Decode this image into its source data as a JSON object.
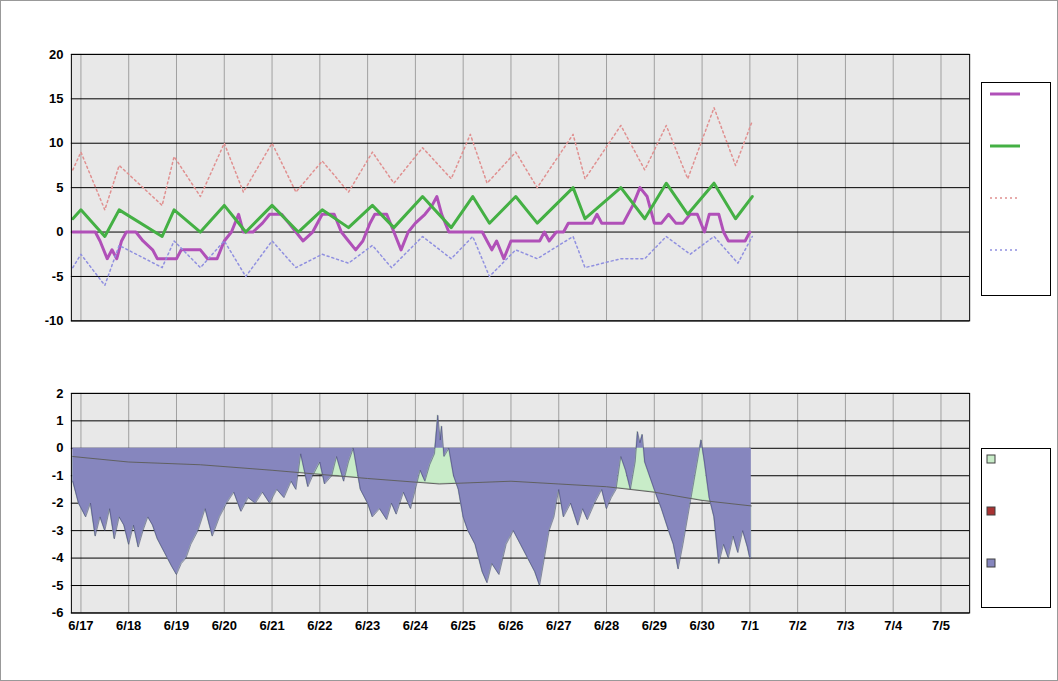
{
  "chart_data": [
    {
      "type": "line",
      "xlim": [
        -0.2,
        18.6
      ],
      "xticks": [
        {
          "value": 0,
          "label": "6/17"
        },
        {
          "value": 1,
          "label": "6/18"
        },
        {
          "value": 2,
          "label": "6/19"
        },
        {
          "value": 3,
          "label": "6/20"
        },
        {
          "value": 4,
          "label": "6/21"
        },
        {
          "value": 5,
          "label": "6/22"
        },
        {
          "value": 6,
          "label": "6/23"
        },
        {
          "value": 7,
          "label": "6/24"
        },
        {
          "value": 8,
          "label": "6/25"
        },
        {
          "value": 9,
          "label": "6/26"
        },
        {
          "value": 10,
          "label": "6/27"
        },
        {
          "value": 11,
          "label": "6/28"
        },
        {
          "value": 12,
          "label": "6/29"
        },
        {
          "value": 13,
          "label": "6/30"
        },
        {
          "value": 14,
          "label": "7/1"
        },
        {
          "value": 15,
          "label": "7/2"
        },
        {
          "value": 16,
          "label": "7/3"
        },
        {
          "value": 17,
          "label": "7/4"
        },
        {
          "value": 18,
          "label": "7/5"
        }
      ],
      "ylim": [
        -10,
        20
      ],
      "yticks": [
        -10,
        -5,
        0,
        5,
        10,
        15,
        20
      ],
      "grid": true,
      "legend": "right",
      "tick_labels": "y",
      "series": [
        {
          "color": "#b050b8",
          "line_style": "solid",
          "x": [
            -0.17,
            0.3,
            0.4,
            0.55,
            0.65,
            0.75,
            0.85,
            0.95,
            1.15,
            1.3,
            1.5,
            1.6,
            2.0,
            2.1,
            2.5,
            2.65,
            2.85,
            3.0,
            3.15,
            3.3,
            3.4,
            3.6,
            3.8,
            3.95,
            4.2,
            4.35,
            4.5,
            4.65,
            4.85,
            5.05,
            5.3,
            5.45,
            5.6,
            5.75,
            5.9,
            6.05,
            6.15,
            6.4,
            6.55,
            6.7,
            6.85,
            7.0,
            7.2,
            7.35,
            7.45,
            7.55,
            7.7,
            8.4,
            8.5,
            8.6,
            8.7,
            8.85,
            9.0,
            9.6,
            9.7,
            9.8,
            9.95,
            10.1,
            10.2,
            10.7,
            10.8,
            10.9,
            11.35,
            11.45,
            11.55,
            11.7,
            11.85,
            12.0,
            12.15,
            12.3,
            12.45,
            12.6,
            12.75,
            12.9,
            13.05,
            13.15,
            13.35,
            13.45,
            13.55,
            13.9,
            14.0
          ],
          "values": [
            0,
            0,
            -1,
            -3,
            -2,
            -3,
            -1,
            0,
            0,
            -1,
            -2,
            -3,
            -3,
            -2,
            -2,
            -3,
            -3,
            -1,
            0,
            2,
            0,
            0,
            1,
            2,
            2,
            1,
            0,
            -1,
            0,
            2,
            2,
            0,
            -1,
            -2,
            -1,
            1,
            2,
            2,
            0,
            -2,
            0,
            1,
            2,
            3,
            4,
            2,
            0,
            0,
            -1,
            -2,
            -1,
            -3,
            -1,
            -1,
            0,
            -1,
            0,
            0,
            1,
            1,
            2,
            1,
            1,
            2,
            3,
            5,
            4,
            1,
            1,
            2,
            1,
            1,
            2,
            2,
            0,
            2,
            2,
            0,
            -1,
            -1,
            0
          ]
        },
        {
          "color": "#44b044",
          "line_style": "solid",
          "x": [
            -0.17,
            0.0,
            0.5,
            0.8,
            1.7,
            1.95,
            2.5,
            3.0,
            3.45,
            4.0,
            4.55,
            5.05,
            5.6,
            6.1,
            6.55,
            7.15,
            7.75,
            8.2,
            8.55,
            9.1,
            9.55,
            10.3,
            10.55,
            11.3,
            11.8,
            12.25,
            12.7,
            13.25,
            13.7,
            14.05
          ],
          "values": [
            1.5,
            2.5,
            -0.5,
            2.5,
            -0.5,
            2.5,
            0,
            3,
            0,
            3,
            0,
            2.5,
            0.5,
            3,
            0.5,
            4,
            0.5,
            4,
            1,
            4,
            1,
            5,
            1.5,
            5,
            1.5,
            5.5,
            2,
            5.5,
            1.5,
            4
          ]
        },
        {
          "color": "#e09090",
          "line_style": "dotted",
          "x": [
            -0.17,
            0.0,
            0.5,
            0.8,
            1.7,
            1.95,
            2.5,
            3.0,
            3.4,
            4.0,
            4.5,
            5.05,
            5.6,
            6.1,
            6.55,
            7.15,
            7.75,
            8.15,
            8.5,
            9.1,
            9.55,
            10.3,
            10.55,
            11.3,
            11.8,
            12.25,
            12.7,
            13.25,
            13.7,
            14.05
          ],
          "values": [
            7,
            9,
            2.5,
            7.5,
            3,
            8.5,
            4,
            10,
            4.5,
            10,
            4.5,
            8,
            4.5,
            9,
            5.5,
            9.5,
            6,
            11,
            5.5,
            9,
            5,
            11,
            6,
            12,
            7,
            12,
            6,
            14,
            7.5,
            12.5
          ]
        },
        {
          "color": "#9090e0",
          "line_style": "dotted",
          "x": [
            -0.17,
            0.0,
            0.5,
            0.8,
            1.7,
            1.95,
            2.5,
            3.0,
            3.45,
            4.0,
            4.5,
            5.05,
            5.6,
            6.1,
            6.5,
            7.15,
            7.75,
            8.2,
            8.55,
            9.1,
            9.55,
            10.3,
            10.55,
            11.3,
            11.8,
            12.25,
            12.75,
            13.25,
            13.75,
            14.05
          ],
          "values": [
            -4,
            -2.5,
            -6,
            -1.5,
            -4,
            -1,
            -4,
            -1,
            -5,
            -1,
            -4,
            -2.5,
            -3.5,
            -1.5,
            -4,
            -0.5,
            -3,
            -0.5,
            -5,
            -2,
            -3,
            -0.5,
            -4,
            -3,
            -3,
            -0.5,
            -2.5,
            -0.5,
            -3.5,
            -0.5
          ]
        }
      ]
    },
    {
      "type": "area",
      "xlim": [
        -0.2,
        18.6
      ],
      "xticks": [
        {
          "value": 0,
          "label": "6/17"
        },
        {
          "value": 1,
          "label": "6/18"
        },
        {
          "value": 2,
          "label": "6/19"
        },
        {
          "value": 3,
          "label": "6/20"
        },
        {
          "value": 4,
          "label": "6/21"
        },
        {
          "value": 5,
          "label": "6/22"
        },
        {
          "value": 6,
          "label": "6/23"
        },
        {
          "value": 7,
          "label": "6/24"
        },
        {
          "value": 8,
          "label": "6/25"
        },
        {
          "value": 9,
          "label": "6/26"
        },
        {
          "value": 10,
          "label": "6/27"
        },
        {
          "value": 11,
          "label": "6/28"
        },
        {
          "value": 12,
          "label": "6/29"
        },
        {
          "value": 13,
          "label": "6/30"
        },
        {
          "value": 14,
          "label": "7/1"
        },
        {
          "value": 15,
          "label": "7/2"
        },
        {
          "value": 16,
          "label": "7/3"
        },
        {
          "value": 17,
          "label": "7/4"
        },
        {
          "value": 18,
          "label": "7/5"
        }
      ],
      "ylim": [
        -6,
        2
      ],
      "yticks": [
        -6,
        -5,
        -4,
        -3,
        -2,
        -1,
        0,
        1,
        2
      ],
      "grid": true,
      "legend": "right",
      "colors": [
        "#c8ecc8",
        "#a83232",
        "#8686be"
      ],
      "series": [
        {
          "type": "area",
          "color": "#8686be",
          "x": [
            -0.17,
            -0.05,
            0.1,
            0.2,
            0.3,
            0.4,
            0.5,
            0.6,
            0.7,
            0.8,
            0.9,
            1.0,
            1.1,
            1.2,
            1.3,
            1.4,
            1.5,
            1.6,
            1.75,
            1.9,
            2.0,
            2.1,
            2.2,
            2.3,
            2.45,
            2.6,
            2.75,
            2.9,
            3.05,
            3.2,
            3.35,
            3.5,
            3.65,
            3.8,
            3.95,
            4.1,
            4.25,
            4.4,
            4.5,
            4.6,
            4.75,
            4.85,
            5.0,
            5.1,
            5.25,
            5.35,
            5.5,
            5.6,
            5.7,
            5.85,
            6.0,
            6.1,
            6.25,
            6.4,
            6.5,
            6.6,
            6.75,
            6.9,
            7.0,
            7.1,
            7.2,
            7.3,
            7.4,
            7.47,
            7.52,
            7.55,
            7.6,
            7.7,
            7.8,
            7.9,
            8.0,
            8.1,
            8.25,
            8.4,
            8.5,
            8.6,
            8.75,
            8.9,
            9.05,
            9.2,
            9.35,
            9.5,
            9.6,
            9.7,
            9.8,
            9.9,
            10.0,
            10.1,
            10.25,
            10.4,
            10.5,
            10.6,
            10.75,
            10.9,
            11.0,
            11.1,
            11.2,
            11.3,
            11.4,
            11.5,
            11.6,
            11.65,
            11.7,
            11.75,
            11.8,
            11.9,
            12.0,
            12.15,
            12.3,
            12.4,
            12.5,
            12.6,
            12.7,
            12.8,
            12.9,
            12.98,
            13.05,
            13.15,
            13.25,
            13.35,
            13.45,
            13.55,
            13.65,
            13.75,
            13.85,
            13.95,
            14.0,
            14.03
          ],
          "values": [
            -1.2,
            -2,
            -2.5,
            -2,
            -3.2,
            -2.5,
            -3,
            -2.2,
            -3.3,
            -2.5,
            -2.8,
            -3.5,
            -2.8,
            -3.6,
            -3,
            -2.5,
            -2.8,
            -3.3,
            -3.8,
            -4.3,
            -4.6,
            -4.2,
            -4,
            -3.5,
            -3,
            -2.2,
            -3.2,
            -2.5,
            -2,
            -1.6,
            -2.3,
            -1.8,
            -2,
            -1.6,
            -2,
            -1.5,
            -1.8,
            -1.2,
            -1.5,
            -0.2,
            -1.4,
            -1,
            -0.5,
            -1.3,
            -1,
            -0.3,
            -1.2,
            -0.5,
            0,
            -1.5,
            -2,
            -2.5,
            -2.2,
            -2.6,
            -2,
            -2.4,
            -1.6,
            -2.2,
            -1.5,
            -0.8,
            -1.2,
            -0.6,
            -0.2,
            1.2,
            0.3,
            0.8,
            -0.3,
            0,
            -1,
            -1.5,
            -2.5,
            -3,
            -3.5,
            -4.5,
            -4.9,
            -4.2,
            -4.6,
            -3.5,
            -3,
            -3.5,
            -4,
            -4.5,
            -5,
            -4,
            -3,
            -2.5,
            -1.5,
            -2.5,
            -2,
            -2.8,
            -2.2,
            -2.6,
            -2,
            -1.5,
            -2.2,
            -1.8,
            -1.5,
            -0.3,
            -0.8,
            -1.5,
            -0.5,
            0.6,
            0.2,
            0.5,
            -0.5,
            -1,
            -1.5,
            -2.2,
            -3,
            -3.5,
            -4.4,
            -3.5,
            -2.5,
            -1.5,
            -0.5,
            0.3,
            -0.5,
            -1.8,
            -2.5,
            -4.2,
            -3.5,
            -4,
            -3.2,
            -3.8,
            -3,
            -3.6,
            -4,
            -4
          ]
        },
        {
          "type": "line",
          "color": "#606060",
          "x": [
            -0.17,
            1.0,
            2.5,
            4.0,
            6.0,
            7.5,
            9.0,
            10.0,
            11.0,
            12.0,
            13.0,
            14.03
          ],
          "values": [
            -0.3,
            -0.5,
            -0.6,
            -0.8,
            -1.1,
            -1.3,
            -1.2,
            -1.3,
            -1.4,
            -1.6,
            -1.9,
            -2.1
          ]
        }
      ]
    }
  ]
}
